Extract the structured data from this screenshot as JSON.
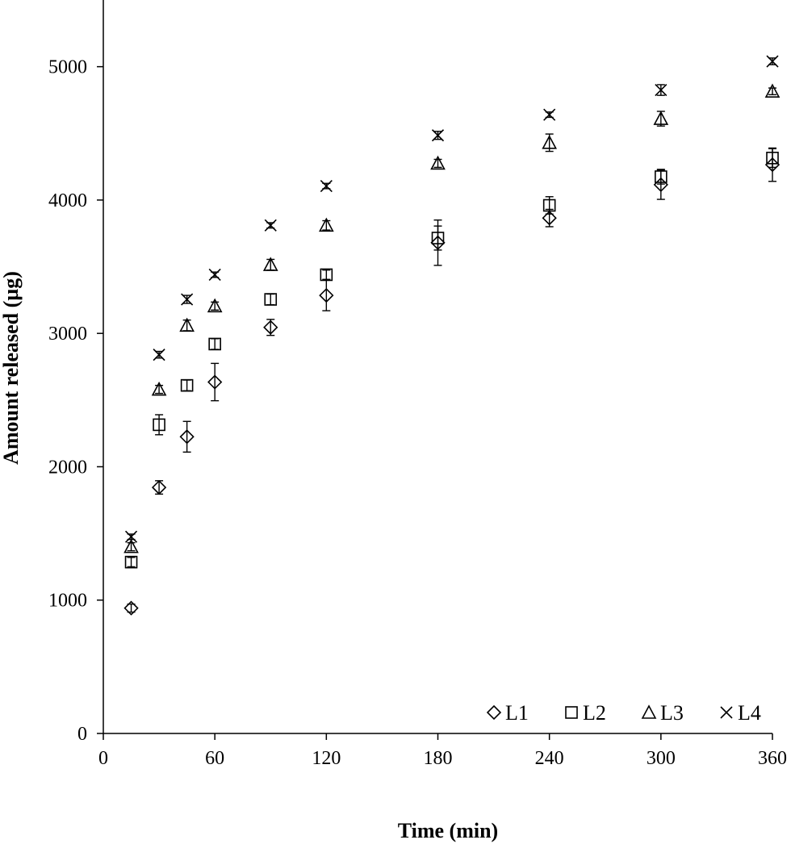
{
  "chart_data": {
    "type": "scatter",
    "title": "",
    "xlabel": "Time (min)",
    "ylabel": "Amount released (µg)",
    "xlim": [
      0,
      360
    ],
    "ylim": [
      0,
      5500
    ],
    "xticks": [
      0,
      60,
      120,
      180,
      240,
      300,
      360
    ],
    "xtick_labels": [
      "0",
      "60",
      "120",
      "180",
      "240",
      "300",
      "360"
    ],
    "yticks": [
      0,
      1000,
      2000,
      3000,
      4000,
      5000
    ],
    "ytick_labels": [
      "0",
      "1000",
      "2000",
      "3000",
      "4000",
      "5000"
    ],
    "grid": false,
    "legend_position": "bottom-right",
    "x": [
      15,
      30,
      45,
      60,
      90,
      120,
      180,
      240,
      300,
      360
    ],
    "series": [
      {
        "name": "L1",
        "marker": "diamond",
        "values": [
          940,
          1845,
          2225,
          2635,
          3045,
          3285,
          3680,
          3865,
          4115,
          4265
        ],
        "errors": [
          30,
          50,
          115,
          140,
          60,
          115,
          170,
          65,
          110,
          125
        ]
      },
      {
        "name": "L2",
        "marker": "square",
        "values": [
          1285,
          2315,
          2610,
          2920,
          3255,
          3440,
          3715,
          3960,
          4175,
          4315
        ],
        "errors": [
          35,
          75,
          40,
          40,
          40,
          35,
          90,
          65,
          55,
          70
        ]
      },
      {
        "name": "L3",
        "marker": "triangle",
        "values": [
          1400,
          2580,
          3060,
          3205,
          3515,
          3810,
          4275,
          4430,
          4610,
          4815
        ],
        "errors": [
          30,
          30,
          40,
          30,
          40,
          35,
          30,
          65,
          55,
          25
        ]
      },
      {
        "name": "L4",
        "marker": "x",
        "values": [
          1475,
          2840,
          3255,
          3440,
          3810,
          4105,
          4485,
          4640,
          4825,
          5040
        ],
        "errors": [
          20,
          25,
          30,
          20,
          20,
          20,
          30,
          20,
          40,
          25
        ]
      }
    ]
  }
}
